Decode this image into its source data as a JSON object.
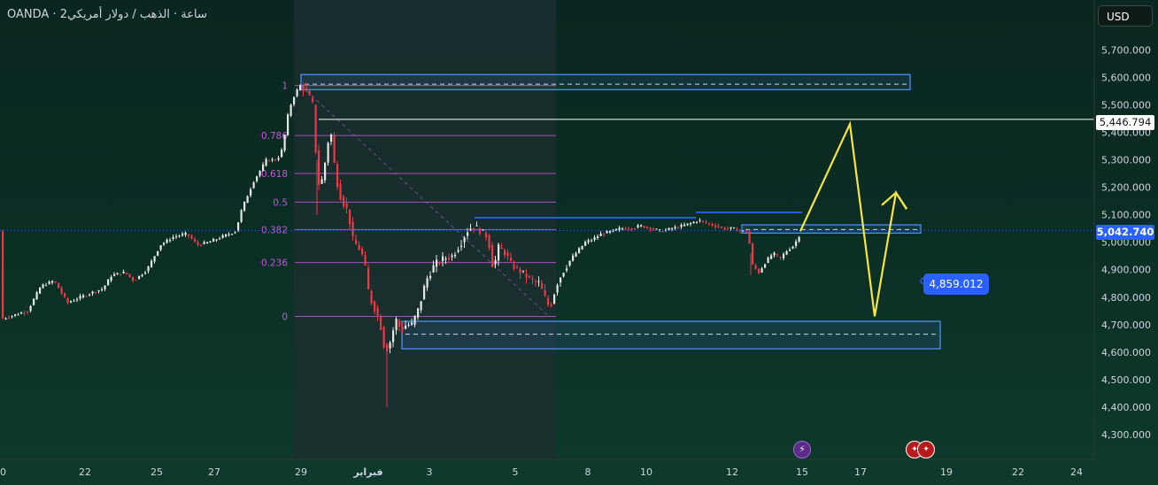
{
  "header": {
    "symbol_title": "OANDA · 2ساعة · الذهب / دولار أمريكي"
  },
  "price_scale": {
    "currency": "USD",
    "ticks": [
      "5,700.000",
      "5,600.000",
      "5,500.000",
      "5,400.000",
      "5,300.000",
      "5,200.000",
      "5,100.000",
      "5,000.000",
      "4,900.000",
      "4,800.000",
      "4,700.000",
      "4,600.000",
      "4,500.000",
      "4,400.000",
      "4,300.000"
    ],
    "level_tag": "5,446.794",
    "last_price_tag": "5,042.740"
  },
  "time_axis": {
    "ticks": [
      "20",
      "22",
      "25",
      "27",
      "29",
      "فبراير",
      "3",
      "5",
      "8",
      "10",
      "12",
      "15",
      "17",
      "19",
      "22",
      "24"
    ]
  },
  "target_label": "4,859.012",
  "fib_levels": [
    "1",
    "0.786",
    "0.618",
    "0.5",
    "0.382",
    "0.236",
    "0"
  ],
  "events": {
    "bolt_icon": "lightning-icon",
    "flag_icon": "us-flag-icon"
  },
  "colors": {
    "up": "#e6e6e6",
    "down": "#f23645",
    "fib": "#c257d6",
    "box": "#4b8ef5",
    "projection": "#f5e642",
    "last_price": "#2962ff"
  },
  "chart_data": {
    "type": "candlestick",
    "title": "",
    "instrument": "XAU/USD",
    "timeframe": "2h",
    "ylim": [
      4250,
      5780
    ],
    "y_ticks": [
      4300,
      4400,
      4500,
      4600,
      4700,
      4800,
      4900,
      5000,
      5100,
      5200,
      5300,
      5400,
      5500,
      5600,
      5700
    ],
    "x_ticks": [
      "20",
      "22",
      "25",
      "27",
      "29",
      "فبراير",
      "3",
      "5",
      "8",
      "10",
      "12",
      "15",
      "17",
      "19",
      "22",
      "24"
    ],
    "price_path": [
      [
        0,
        4720
      ],
      [
        30,
        4750
      ],
      [
        45,
        4840
      ],
      [
        60,
        4860
      ],
      [
        75,
        4780
      ],
      [
        90,
        4800
      ],
      [
        105,
        4820
      ],
      [
        115,
        4830
      ],
      [
        125,
        4880
      ],
      [
        140,
        4890
      ],
      [
        150,
        4860
      ],
      [
        165,
        4900
      ],
      [
        180,
        4990
      ],
      [
        195,
        5020
      ],
      [
        210,
        5030
      ],
      [
        222,
        4990
      ],
      [
        235,
        5000
      ],
      [
        250,
        5020
      ],
      [
        265,
        5040
      ],
      [
        272,
        5120
      ],
      [
        285,
        5220
      ],
      [
        300,
        5300
      ],
      [
        312,
        5300
      ],
      [
        318,
        5340
      ],
      [
        325,
        5480
      ],
      [
        332,
        5540
      ],
      [
        338,
        5570
      ],
      [
        345,
        5550
      ],
      [
        352,
        5500
      ],
      [
        356,
        5310
      ],
      [
        360,
        5180
      ],
      [
        366,
        5290
      ],
      [
        372,
        5420
      ],
      [
        378,
        5240
      ],
      [
        384,
        5160
      ],
      [
        392,
        5110
      ],
      [
        398,
        5000
      ],
      [
        404,
        4980
      ],
      [
        410,
        4940
      ],
      [
        416,
        4800
      ],
      [
        422,
        4760
      ],
      [
        428,
        4710
      ],
      [
        434,
        4600
      ],
      [
        440,
        4640
      ],
      [
        446,
        4720
      ],
      [
        452,
        4680
      ],
      [
        458,
        4700
      ],
      [
        464,
        4700
      ],
      [
        472,
        4760
      ],
      [
        480,
        4860
      ],
      [
        490,
        4920
      ],
      [
        500,
        4940
      ],
      [
        510,
        4950
      ],
      [
        520,
        5000
      ],
      [
        526,
        5040
      ],
      [
        534,
        5060
      ],
      [
        542,
        5040
      ],
      [
        550,
        5020
      ],
      [
        556,
        4900
      ],
      [
        562,
        4980
      ],
      [
        570,
        4960
      ],
      [
        576,
        4920
      ],
      [
        584,
        4900
      ],
      [
        592,
        4880
      ],
      [
        600,
        4860
      ],
      [
        608,
        4850
      ],
      [
        614,
        4800
      ],
      [
        620,
        4760
      ],
      [
        628,
        4850
      ],
      [
        636,
        4900
      ],
      [
        644,
        4940
      ],
      [
        652,
        4970
      ],
      [
        660,
        5000
      ],
      [
        668,
        5010
      ],
      [
        678,
        5030
      ],
      [
        690,
        5040
      ],
      [
        700,
        5050
      ],
      [
        712,
        5050
      ],
      [
        722,
        5060
      ],
      [
        734,
        5050
      ],
      [
        746,
        5040
      ],
      [
        758,
        5050
      ],
      [
        770,
        5060
      ],
      [
        780,
        5070
      ],
      [
        788,
        5080
      ],
      [
        796,
        5070
      ],
      [
        806,
        5060
      ],
      [
        816,
        5050
      ],
      [
        826,
        5050
      ],
      [
        836,
        5040
      ],
      [
        844,
        5040
      ],
      [
        848,
        4920
      ],
      [
        856,
        4890
      ],
      [
        864,
        4930
      ],
      [
        872,
        4960
      ],
      [
        880,
        4940
      ],
      [
        888,
        4970
      ],
      [
        896,
        4990
      ],
      [
        904,
        5040
      ]
    ],
    "zones": [
      {
        "name": "resistance-zone",
        "from": 5555,
        "to": 5610,
        "mid": 5575
      },
      {
        "name": "current-zone",
        "from": 5033,
        "to": 5063,
        "mid": 5046
      },
      {
        "name": "support-zone",
        "from": 4612,
        "to": 4712,
        "mid": 4665
      }
    ],
    "levels": [
      {
        "name": "horizontal-level",
        "value": 5446.794
      },
      {
        "name": "last-price",
        "value": 5042.74
      }
    ],
    "fibonacci": [
      {
        "ratio": "1",
        "price": 5570
      },
      {
        "ratio": "0.786",
        "price": 5388
      },
      {
        "ratio": "0.618",
        "price": 5250
      },
      {
        "ratio": "0.5",
        "price": 5146
      },
      {
        "ratio": "0.382",
        "price": 5046
      },
      {
        "ratio": "0.236",
        "price": 4926
      },
      {
        "ratio": "0",
        "price": 4730
      }
    ],
    "projection_path": [
      [
        904,
        5040
      ],
      [
        960,
        5430
      ],
      [
        988,
        4730
      ],
      [
        1012,
        5180
      ],
      [
        1024,
        5120
      ]
    ],
    "projection_target": 4859.012
  }
}
